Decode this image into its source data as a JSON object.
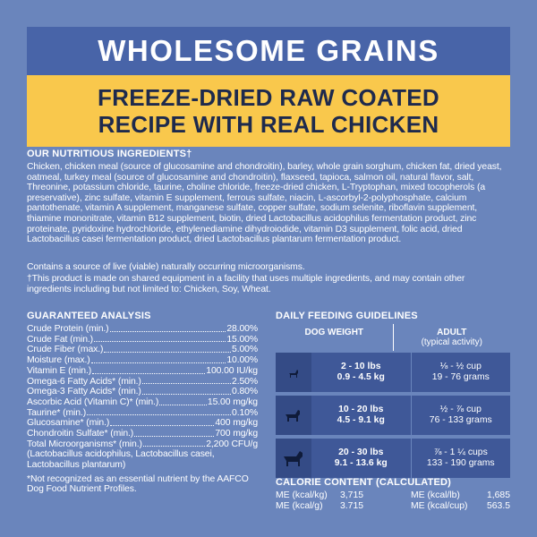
{
  "header": {
    "title": "WHOLESOME GRAINS",
    "subtitle_lines": [
      "FREEZE-DRIED RAW COATED",
      "RECIPE WITH REAL CHICKEN"
    ]
  },
  "ingredients": {
    "heading": "OUR NUTRITIOUS INGREDIENTS†",
    "text": "Chicken, chicken meal (source of glucosamine and chondroitin), barley, whole grain sorghum, chicken fat, dried yeast, oatmeal, turkey meal (source of glucosamine and chondroitin), flaxseed, tapioca, salmon oil, natural flavor, salt, Threonine, potassium chloride, taurine, choline chloride, freeze-dried chicken, L-Tryptophan, mixed tocopherols (a preservative), zinc sulfate, vitamin E supplement, ferrous sulfate, niacin, L-ascorbyl-2-polyphosphate, calcium pantothenate, vitamin A supplement, manganese sulfate, copper sulfate, sodium selenite, riboflavin supplement, thiamine mononitrate, vitamin B12 supplement, biotin, dried Lactobacillus acidophilus fermentation product, zinc proteinate, pyridoxine hydrochloride, ethylenediamine dihydroiodide, vitamin D3 supplement, folic acid, dried Lactobacillus casei fermentation product, dried Lactobacillus plantarum fermentation product.",
    "note": "Contains a source of live (viable) naturally occurring microorganisms.",
    "disclaimer": "†This product is made on shared equipment in a facility that uses multiple ingredients, and may contain other ingredients including but not limited to: Chicken, Soy, Wheat."
  },
  "guaranteed_analysis": {
    "heading": "GUARANTEED ANALYSIS",
    "rows": [
      [
        "Crude Protein (min.)",
        "28.00%"
      ],
      [
        "Crude Fat (min.)",
        "15.00%"
      ],
      [
        "Crude Fiber (max.)",
        "5.00%"
      ],
      [
        "Moisture (max.)",
        "10.00%"
      ],
      [
        "Vitamin E (min.)",
        "100.00 IU/kg"
      ],
      [
        "Omega-6 Fatty Acids* (min.)",
        "2.50%"
      ],
      [
        "Omega-3 Fatty Acids* (min.)",
        "0.80%"
      ],
      [
        "Ascorbic Acid (Vitamin C)* (min.)",
        "15.00 mg/kg"
      ],
      [
        "Taurine* (min.)",
        "0.10%"
      ],
      [
        "Glucosamine* (min.)",
        "400 mg/kg"
      ],
      [
        "Chondroitin Sulfate* (min.)",
        "700 mg/kg"
      ],
      [
        "Total Microorganisms* (min.)",
        "2,200 CFU/g"
      ]
    ],
    "microorganisms_note": "(Lactobacillus acidophilus, Lactobacillus casei, Lactobacillus plantarum)",
    "footnote": "*Not recognized as an essential nutrient by the AAFCO Dog Food Nutrient Profiles."
  },
  "feeding_guidelines": {
    "heading": "DAILY FEEDING GUIDELINES",
    "column_weight": "DOG WEIGHT",
    "column_adult": "ADULT",
    "column_adult_sub": "(typical activity)",
    "rows": [
      {
        "lbs": "2 - 10 lbs",
        "kg": "0.9 - 4.5 kg",
        "cups": "⅛ - ½ cup",
        "grams": "19 - 76 grams"
      },
      {
        "lbs": "10 - 20 lbs",
        "kg": "4.5 - 9.1 kg",
        "cups": "½ - ⅞ cup",
        "grams": "76 - 133 grams"
      },
      {
        "lbs": "20 - 30 lbs",
        "kg": "9.1 - 13.6 kg",
        "cups": "⅞ - 1 ¼ cups",
        "grams": "133 - 190 grams"
      }
    ]
  },
  "calorie_content": {
    "heading": "CALORIE CONTENT (CALCULATED)",
    "rows": [
      [
        "ME (kcal/kg)",
        "3,715"
      ],
      [
        "ME (kcal/lb)",
        "1,685"
      ],
      [
        "ME (kcal/g)",
        "3.715"
      ],
      [
        "ME (kcal/cup)",
        "563.5"
      ]
    ]
  }
}
